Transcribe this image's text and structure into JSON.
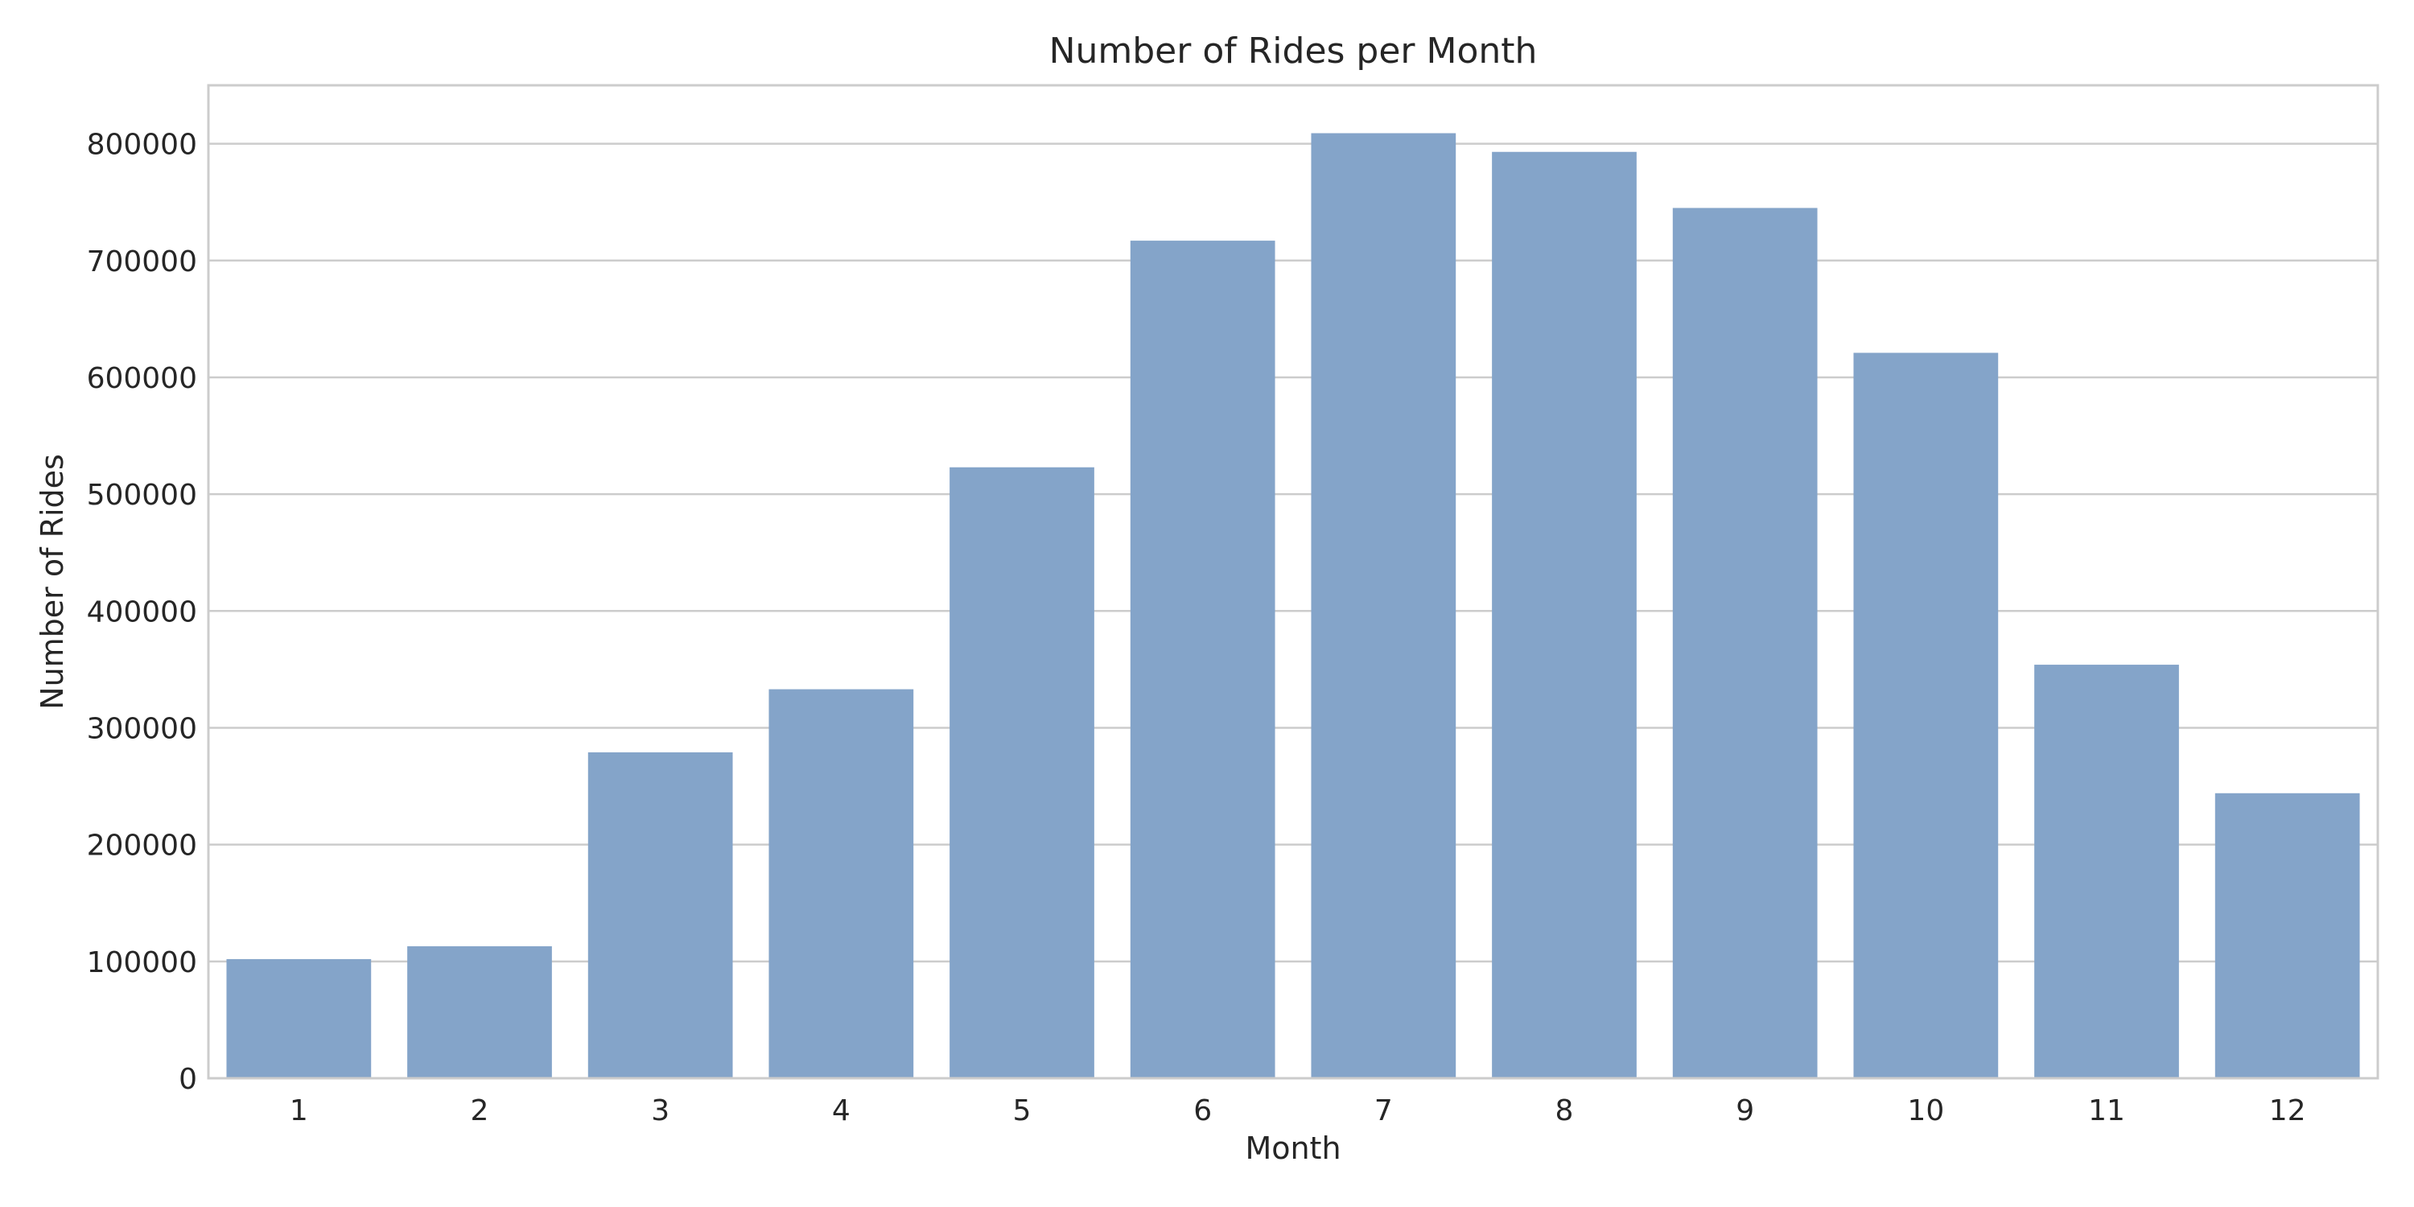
{
  "chart_data": {
    "type": "bar",
    "title": "Number of Rides per Month",
    "xlabel": "Month",
    "ylabel": "Number of Rides",
    "categories": [
      "1",
      "2",
      "3",
      "4",
      "5",
      "6",
      "7",
      "8",
      "9",
      "10",
      "11",
      "12"
    ],
    "values": [
      102000,
      113000,
      279000,
      333000,
      523000,
      717000,
      809000,
      793000,
      745000,
      621000,
      354000,
      244000
    ],
    "ylim": [
      0,
      850000
    ],
    "yticks": [
      0,
      100000,
      200000,
      300000,
      400000,
      500000,
      600000,
      700000,
      800000
    ],
    "ytick_labels": [
      "0",
      "100000",
      "200000",
      "300000",
      "400000",
      "500000",
      "600000",
      "700000",
      "800000"
    ],
    "grid": "horizontal",
    "bar_color": "#84a4c9"
  }
}
